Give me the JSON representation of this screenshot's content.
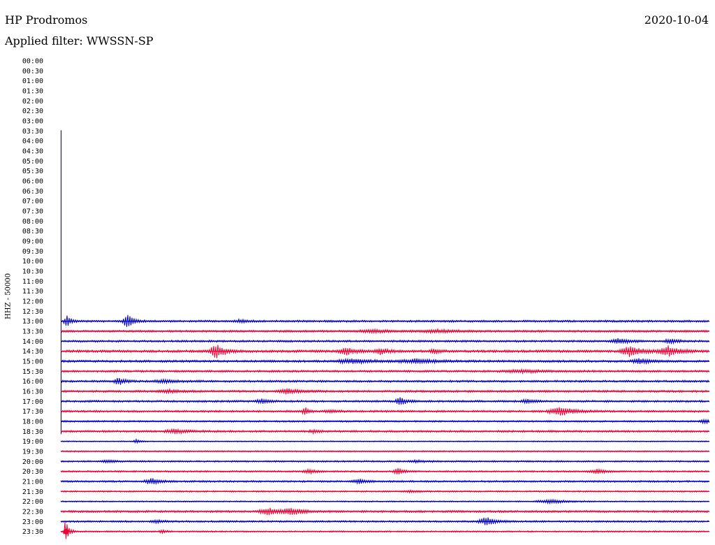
{
  "header": {
    "station": "HP Prodromos",
    "date": "2020-10-04",
    "filter": "Applied filter: WWSSN-SP"
  },
  "side_label": "HHZ - 50000",
  "chart_data": {
    "type": "line",
    "title": "HP Prodromos",
    "subtitle": "Applied filter: WWSSN-SP",
    "ylabel": "HHZ - 50000",
    "y_ticks": [
      "00:00",
      "00:30",
      "01:00",
      "01:30",
      "02:00",
      "02:30",
      "03:00",
      "03:30",
      "04:00",
      "04:30",
      "05:00",
      "05:30",
      "06:00",
      "06:30",
      "07:00",
      "07:30",
      "08:00",
      "08:30",
      "09:00",
      "09:30",
      "10:00",
      "10:30",
      "11:00",
      "11:30",
      "12:00",
      "12:30",
      "13:00",
      "13:30",
      "14:00",
      "14:30",
      "15:00",
      "15:30",
      "16:00",
      "16:30",
      "17:00",
      "17:30",
      "18:00",
      "18:30",
      "19:00",
      "19:30",
      "20:00",
      "20:30",
      "21:00",
      "21:30",
      "22:00",
      "22:30",
      "23:00",
      "23:30"
    ],
    "x_range_minutes": [
      0,
      30
    ],
    "grid": false,
    "colors": {
      "blue": "#0000cc",
      "red": "#ee0033",
      "marker": "#000080"
    },
    "data_start_marker": "03:30",
    "data_end_marker": "18:30",
    "traces": [
      {
        "time": "13:00",
        "color": "blue",
        "level": 1.0,
        "events": [
          {
            "x": 0.3,
            "amp": 8,
            "w": 0.2
          },
          {
            "x": 3.1,
            "amp": 10,
            "w": 0.3
          },
          {
            "x": 8.3,
            "amp": 2,
            "w": 0.3
          }
        ]
      },
      {
        "time": "13:30",
        "color": "red",
        "level": 1.0,
        "events": [
          {
            "x": 14.5,
            "amp": 2,
            "w": 1.0
          },
          {
            "x": 17.5,
            "amp": 2,
            "w": 1.0
          }
        ]
      },
      {
        "time": "14:00",
        "color": "blue",
        "level": 1.0,
        "events": [
          {
            "x": 25.8,
            "amp": 4,
            "w": 0.5
          },
          {
            "x": 28.2,
            "amp": 3,
            "w": 0.4
          }
        ]
      },
      {
        "time": "14:30",
        "color": "red",
        "level": 1.2,
        "events": [
          {
            "x": 7.2,
            "amp": 11,
            "w": 0.4
          },
          {
            "x": 13.2,
            "amp": 5,
            "w": 0.5
          },
          {
            "x": 14.8,
            "amp": 4,
            "w": 0.4
          },
          {
            "x": 17.3,
            "amp": 3,
            "w": 0.3
          },
          {
            "x": 26.3,
            "amp": 8,
            "w": 0.6
          },
          {
            "x": 28.1,
            "amp": 7,
            "w": 0.6
          }
        ]
      },
      {
        "time": "15:00",
        "color": "blue",
        "level": 1.1,
        "events": [
          {
            "x": 13.5,
            "amp": 3,
            "w": 1.0
          },
          {
            "x": 16.5,
            "amp": 3,
            "w": 1.0
          },
          {
            "x": 26.8,
            "amp": 4,
            "w": 0.5
          }
        ]
      },
      {
        "time": "15:30",
        "color": "red",
        "level": 1.0,
        "events": [
          {
            "x": 21.3,
            "amp": 2,
            "w": 1.2
          }
        ]
      },
      {
        "time": "16:00",
        "color": "blue",
        "level": 1.0,
        "events": [
          {
            "x": 2.7,
            "amp": 6,
            "w": 0.3
          },
          {
            "x": 4.8,
            "amp": 2,
            "w": 0.8
          }
        ]
      },
      {
        "time": "16:30",
        "color": "red",
        "level": 1.0,
        "events": [
          {
            "x": 10.5,
            "amp": 4,
            "w": 0.6
          },
          {
            "x": 5.0,
            "amp": 2,
            "w": 0.6
          }
        ]
      },
      {
        "time": "17:00",
        "color": "blue",
        "level": 1.0,
        "events": [
          {
            "x": 9.3,
            "amp": 3,
            "w": 0.4
          },
          {
            "x": 15.7,
            "amp": 6,
            "w": 0.3
          },
          {
            "x": 21.6,
            "amp": 3,
            "w": 0.4
          }
        ]
      },
      {
        "time": "17:30",
        "color": "red",
        "level": 1.0,
        "events": [
          {
            "x": 11.3,
            "amp": 5,
            "w": 0.2
          },
          {
            "x": 23.1,
            "amp": 6,
            "w": 0.7
          },
          {
            "x": 12.5,
            "amp": 2,
            "w": 0.4
          }
        ]
      },
      {
        "time": "18:00",
        "color": "blue",
        "level": 0.8,
        "events": [
          {
            "x": 29.8,
            "amp": 3,
            "w": 0.3
          }
        ]
      },
      {
        "time": "18:30",
        "color": "red",
        "level": 1.0,
        "events": [
          {
            "x": 5.3,
            "amp": 3,
            "w": 0.6
          },
          {
            "x": 11.7,
            "amp": 2,
            "w": 0.3
          }
        ]
      },
      {
        "time": "19:00",
        "color": "blue",
        "level": 0.5,
        "events": [
          {
            "x": 3.5,
            "amp": 3,
            "w": 0.2
          }
        ]
      },
      {
        "time": "19:30",
        "color": "red",
        "level": 0.7,
        "events": []
      },
      {
        "time": "20:00",
        "color": "blue",
        "level": 0.8,
        "events": [
          {
            "x": 2.2,
            "amp": 2,
            "w": 0.4
          },
          {
            "x": 16.5,
            "amp": 1.5,
            "w": 0.5
          }
        ]
      },
      {
        "time": "20:30",
        "color": "red",
        "level": 0.8,
        "events": [
          {
            "x": 11.5,
            "amp": 3,
            "w": 0.4
          },
          {
            "x": 15.6,
            "amp": 5,
            "w": 0.3
          },
          {
            "x": 24.8,
            "amp": 3,
            "w": 0.5
          }
        ]
      },
      {
        "time": "21:00",
        "color": "blue",
        "level": 0.9,
        "events": [
          {
            "x": 4.2,
            "amp": 5,
            "w": 0.4
          },
          {
            "x": 13.8,
            "amp": 3,
            "w": 0.4
          }
        ]
      },
      {
        "time": "21:30",
        "color": "red",
        "level": 0.7,
        "events": [
          {
            "x": 16.2,
            "amp": 1.5,
            "w": 0.6
          }
        ]
      },
      {
        "time": "22:00",
        "color": "blue",
        "level": 0.6,
        "events": [
          {
            "x": 22.6,
            "amp": 3,
            "w": 0.8
          }
        ]
      },
      {
        "time": "22:30",
        "color": "red",
        "level": 1.0,
        "events": [
          {
            "x": 9.6,
            "amp": 5,
            "w": 0.6
          },
          {
            "x": 10.7,
            "amp": 5,
            "w": 0.6
          }
        ]
      },
      {
        "time": "23:00",
        "color": "blue",
        "level": 0.9,
        "events": [
          {
            "x": 19.7,
            "amp": 6,
            "w": 0.5
          },
          {
            "x": 4.5,
            "amp": 2,
            "w": 0.4
          }
        ]
      },
      {
        "time": "23:30",
        "color": "red",
        "level": 0.7,
        "events": [
          {
            "x": 0.25,
            "amp": 19,
            "w": 0.15
          },
          {
            "x": 4.7,
            "amp": 3,
            "w": 0.2
          }
        ]
      }
    ]
  }
}
